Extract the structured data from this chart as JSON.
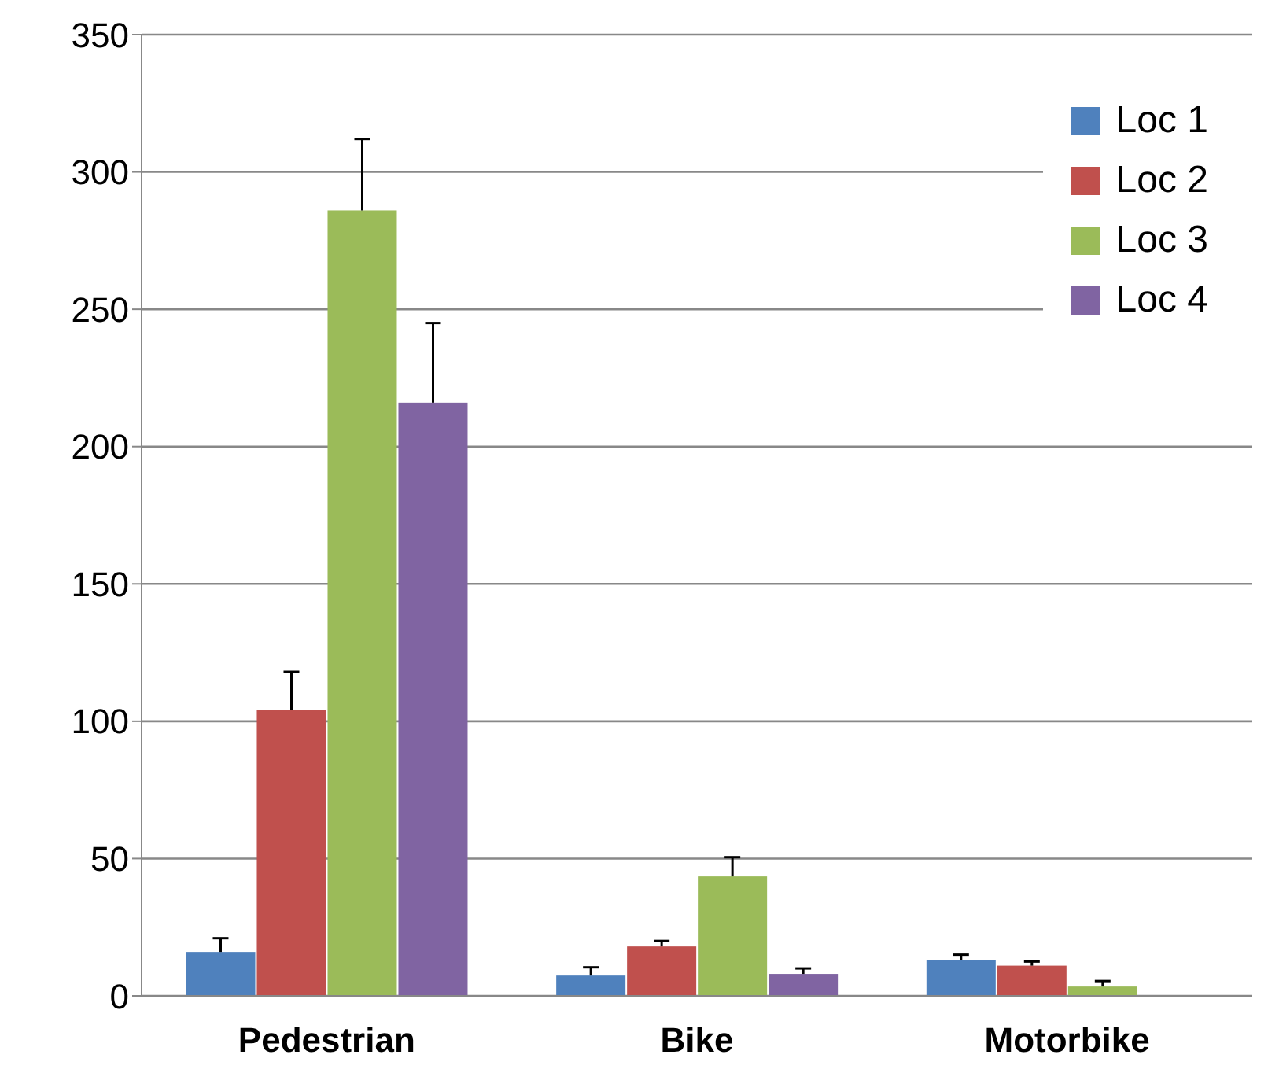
{
  "chart_data": {
    "type": "bar",
    "categories": [
      "Pedestrian",
      "Bike",
      "Motorbike"
    ],
    "series": [
      {
        "name": "Loc 1",
        "color": "#4f81bd",
        "values": [
          16,
          7.4,
          13
        ],
        "errors": [
          [
            16,
            21
          ],
          [
            7.4,
            10.4
          ],
          [
            13,
            15
          ]
        ]
      },
      {
        "name": "Loc 2",
        "color": "#c0504d",
        "values": [
          104,
          18,
          11
        ],
        "errors": [
          [
            104,
            118
          ],
          [
            18,
            20
          ],
          [
            11,
            12.5
          ]
        ]
      },
      {
        "name": "Loc 3",
        "color": "#9bbb59",
        "values": [
          286,
          43.5,
          3.4
        ],
        "errors": [
          [
            286,
            312
          ],
          [
            43.5,
            50.5
          ],
          [
            3.4,
            5.4
          ]
        ]
      },
      {
        "name": "Loc 4",
        "color": "#8064a2",
        "values": [
          216,
          8,
          null
        ],
        "errors": [
          [
            216,
            245
          ],
          [
            8,
            10
          ],
          null
        ]
      }
    ],
    "ylim": [
      0,
      350
    ],
    "yticks": [
      0,
      50,
      100,
      150,
      200,
      250,
      300,
      350
    ],
    "grid": "y",
    "legend": "top right"
  }
}
